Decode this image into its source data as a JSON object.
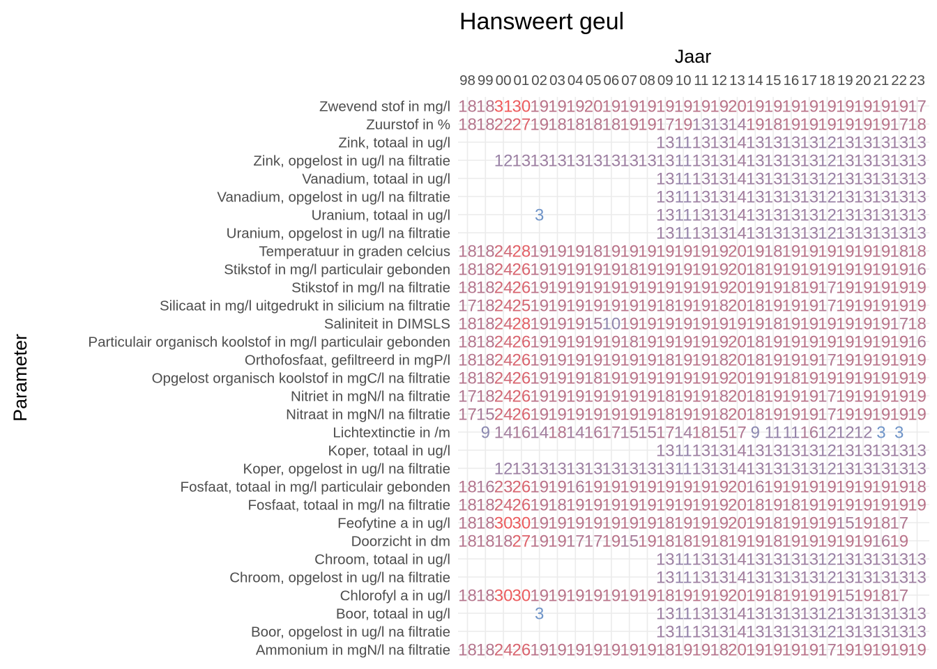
{
  "chart_data": {
    "type": "table",
    "title": "Hansweert geul",
    "xlabel": "Jaar",
    "ylabel": "Parameter",
    "x_position": "top",
    "grid": true,
    "legend": "none",
    "color_scale": {
      "low": "#6f94c8",
      "high": "#f05a5a"
    },
    "columns": [
      "98",
      "99",
      "00",
      "01",
      "02",
      "03",
      "04",
      "05",
      "06",
      "07",
      "08",
      "09",
      "10",
      "11",
      "12",
      "13",
      "14",
      "15",
      "16",
      "17",
      "18",
      "19",
      "20",
      "21",
      "22",
      "23"
    ],
    "rows": [
      "Zwevend stof in mg/l",
      "Zuurstof in %",
      "Zink, totaal in ug/l",
      "Zink, opgelost in ug/l na filtratie",
      "Vanadium, totaal in ug/l",
      "Vanadium, opgelost in ug/l na filtratie",
      "Uranium, totaal in ug/l",
      "Uranium, opgelost in ug/l na filtratie",
      "Temperatuur in graden celcius",
      "Stikstof in mg/l particulair gebonden",
      "Stikstof in mg/l na filtratie",
      "Silicaat in mg/l uitgedrukt in silicium na filtratie",
      "Saliniteit in DIMSLS",
      "Particulair organisch koolstof in mg/l particulair gebonden",
      "Orthofosfaat, gefiltreerd in mgP/l",
      "Opgelost organisch koolstof in mgC/l na filtratie",
      "Nitriet in mgN/l na filtratie",
      "Nitraat in mgN/l na filtratie",
      "Lichtextinctie in /m",
      "Koper, totaal in ug/l",
      "Koper, opgelost in ug/l na filtratie",
      "Fosfaat, totaal in mg/l particulair gebonden",
      "Fosfaat, totaal in mg/l na filtratie",
      "Feofytine a in ug/l",
      "Doorzicht in dm",
      "Chroom, totaal in ug/l",
      "Chroom, opgelost in ug/l na filtratie",
      "Chlorofyl a in ug/l",
      "Boor, totaal in ug/l",
      "Boor, opgelost in ug/l na filtratie",
      "Ammonium in mgN/l na filtratie"
    ],
    "values": [
      [
        18,
        18,
        31,
        30,
        19,
        19,
        19,
        20,
        19,
        19,
        19,
        19,
        19,
        19,
        19,
        20,
        19,
        19,
        19,
        19,
        19,
        19,
        19,
        19,
        19,
        17
      ],
      [
        18,
        18,
        22,
        27,
        19,
        18,
        18,
        18,
        18,
        19,
        19,
        17,
        19,
        13,
        13,
        14,
        19,
        18,
        19,
        19,
        19,
        19,
        19,
        19,
        17,
        18
      ],
      [
        null,
        null,
        null,
        null,
        null,
        null,
        null,
        null,
        null,
        null,
        null,
        13,
        11,
        13,
        13,
        14,
        13,
        13,
        13,
        13,
        12,
        13,
        13,
        13,
        13,
        13
      ],
      [
        null,
        null,
        12,
        13,
        13,
        13,
        13,
        13,
        13,
        13,
        13,
        13,
        11,
        13,
        13,
        14,
        13,
        13,
        13,
        13,
        12,
        13,
        13,
        13,
        13,
        13
      ],
      [
        null,
        null,
        null,
        null,
        null,
        null,
        null,
        null,
        null,
        null,
        null,
        13,
        11,
        13,
        13,
        14,
        13,
        13,
        13,
        13,
        12,
        13,
        13,
        13,
        13,
        13
      ],
      [
        null,
        null,
        null,
        null,
        null,
        null,
        null,
        null,
        null,
        null,
        null,
        13,
        11,
        13,
        13,
        14,
        13,
        13,
        13,
        13,
        12,
        13,
        13,
        13,
        13,
        13
      ],
      [
        null,
        null,
        null,
        null,
        3,
        null,
        null,
        null,
        null,
        null,
        null,
        13,
        11,
        13,
        13,
        14,
        13,
        13,
        13,
        13,
        12,
        13,
        13,
        13,
        13,
        13
      ],
      [
        null,
        null,
        null,
        null,
        null,
        null,
        null,
        null,
        null,
        null,
        null,
        13,
        11,
        13,
        13,
        14,
        13,
        13,
        13,
        13,
        12,
        13,
        13,
        13,
        13,
        13
      ],
      [
        18,
        18,
        24,
        28,
        19,
        19,
        19,
        18,
        19,
        19,
        19,
        19,
        19,
        19,
        19,
        20,
        19,
        18,
        19,
        19,
        19,
        19,
        19,
        19,
        18,
        18
      ],
      [
        18,
        18,
        24,
        26,
        19,
        19,
        19,
        19,
        19,
        18,
        19,
        19,
        19,
        19,
        19,
        20,
        18,
        19,
        19,
        19,
        19,
        19,
        19,
        19,
        19,
        16
      ],
      [
        18,
        18,
        24,
        26,
        19,
        19,
        19,
        19,
        19,
        19,
        19,
        19,
        19,
        19,
        19,
        20,
        19,
        19,
        18,
        19,
        17,
        19,
        19,
        19,
        19,
        19
      ],
      [
        17,
        18,
        24,
        25,
        19,
        19,
        19,
        19,
        19,
        19,
        19,
        18,
        19,
        19,
        18,
        20,
        18,
        19,
        19,
        19,
        17,
        19,
        19,
        19,
        19,
        19
      ],
      [
        18,
        18,
        24,
        28,
        19,
        19,
        19,
        15,
        10,
        19,
        19,
        19,
        19,
        19,
        19,
        19,
        19,
        18,
        19,
        19,
        19,
        19,
        19,
        19,
        17,
        18
      ],
      [
        18,
        18,
        24,
        26,
        19,
        19,
        19,
        19,
        19,
        18,
        19,
        19,
        19,
        19,
        19,
        20,
        18,
        19,
        19,
        19,
        19,
        19,
        19,
        19,
        19,
        16
      ],
      [
        18,
        18,
        24,
        26,
        19,
        19,
        19,
        19,
        19,
        19,
        19,
        18,
        19,
        19,
        18,
        20,
        18,
        19,
        19,
        19,
        17,
        19,
        19,
        19,
        19,
        19
      ],
      [
        18,
        18,
        24,
        26,
        19,
        19,
        19,
        18,
        19,
        19,
        19,
        19,
        19,
        19,
        19,
        20,
        19,
        19,
        18,
        19,
        19,
        19,
        19,
        19,
        19,
        19
      ],
      [
        17,
        18,
        24,
        26,
        19,
        19,
        19,
        19,
        19,
        19,
        19,
        18,
        19,
        19,
        18,
        20,
        18,
        19,
        19,
        19,
        17,
        19,
        19,
        19,
        19,
        19
      ],
      [
        17,
        15,
        24,
        26,
        19,
        19,
        19,
        19,
        19,
        19,
        19,
        18,
        19,
        19,
        18,
        20,
        18,
        19,
        19,
        19,
        17,
        19,
        19,
        19,
        19,
        19
      ],
      [
        null,
        9,
        14,
        16,
        14,
        18,
        14,
        16,
        17,
        15,
        15,
        17,
        14,
        18,
        15,
        17,
        9,
        11,
        11,
        16,
        12,
        12,
        12,
        3,
        3,
        null
      ],
      [
        null,
        null,
        null,
        null,
        null,
        null,
        null,
        null,
        null,
        null,
        null,
        13,
        11,
        13,
        13,
        14,
        13,
        13,
        13,
        13,
        12,
        13,
        13,
        13,
        13,
        13
      ],
      [
        null,
        null,
        12,
        13,
        13,
        13,
        13,
        13,
        13,
        13,
        13,
        13,
        11,
        13,
        13,
        14,
        13,
        13,
        13,
        13,
        12,
        13,
        13,
        13,
        13,
        13
      ],
      [
        18,
        16,
        23,
        26,
        19,
        19,
        16,
        19,
        19,
        19,
        19,
        19,
        19,
        19,
        19,
        20,
        16,
        19,
        19,
        19,
        19,
        19,
        19,
        19,
        19,
        18
      ],
      [
        18,
        18,
        24,
        26,
        19,
        18,
        19,
        19,
        19,
        19,
        19,
        19,
        19,
        19,
        19,
        20,
        18,
        19,
        18,
        19,
        19,
        19,
        19,
        19,
        19,
        19
      ],
      [
        18,
        18,
        30,
        30,
        19,
        19,
        19,
        19,
        19,
        19,
        19,
        18,
        19,
        19,
        19,
        20,
        19,
        18,
        19,
        19,
        19,
        15,
        19,
        18,
        17,
        null
      ],
      [
        18,
        18,
        18,
        27,
        19,
        19,
        17,
        17,
        19,
        15,
        19,
        18,
        18,
        19,
        18,
        19,
        19,
        18,
        19,
        19,
        19,
        19,
        19,
        16,
        19,
        null
      ],
      [
        null,
        null,
        null,
        null,
        null,
        null,
        null,
        null,
        null,
        null,
        null,
        13,
        11,
        13,
        13,
        14,
        13,
        13,
        13,
        13,
        12,
        13,
        13,
        13,
        13,
        13
      ],
      [
        null,
        null,
        null,
        null,
        null,
        null,
        null,
        null,
        null,
        null,
        null,
        13,
        11,
        13,
        13,
        14,
        13,
        13,
        13,
        13,
        12,
        13,
        13,
        13,
        13,
        13
      ],
      [
        18,
        18,
        30,
        30,
        19,
        19,
        19,
        19,
        19,
        19,
        19,
        18,
        19,
        19,
        19,
        20,
        19,
        18,
        19,
        19,
        19,
        15,
        19,
        18,
        17,
        null
      ],
      [
        null,
        null,
        null,
        null,
        3,
        null,
        null,
        null,
        null,
        null,
        null,
        13,
        11,
        13,
        13,
        14,
        13,
        13,
        13,
        13,
        12,
        13,
        13,
        13,
        13,
        13
      ],
      [
        null,
        null,
        null,
        null,
        null,
        null,
        null,
        null,
        null,
        null,
        null,
        13,
        11,
        13,
        13,
        14,
        13,
        13,
        13,
        13,
        12,
        13,
        13,
        13,
        13,
        13
      ],
      [
        18,
        18,
        24,
        26,
        19,
        19,
        19,
        19,
        19,
        19,
        19,
        18,
        19,
        19,
        18,
        20,
        19,
        19,
        19,
        19,
        17,
        19,
        19,
        19,
        19,
        19
      ]
    ]
  }
}
